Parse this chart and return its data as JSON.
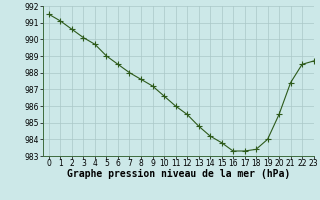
{
  "x": [
    0,
    1,
    2,
    3,
    4,
    5,
    6,
    7,
    8,
    9,
    10,
    11,
    12,
    13,
    14,
    15,
    16,
    17,
    18,
    19,
    20,
    21,
    22,
    23
  ],
  "y": [
    991.5,
    991.1,
    990.6,
    990.1,
    989.7,
    989.0,
    988.5,
    988.0,
    987.6,
    987.2,
    986.6,
    986.0,
    985.5,
    984.8,
    984.2,
    983.8,
    983.3,
    983.3,
    983.4,
    984.0,
    985.5,
    987.4,
    988.5,
    988.7
  ],
  "line_color": "#2d5a1b",
  "marker_color": "#2d5a1b",
  "bg_color": "#cce8e8",
  "grid_color": "#aac8c8",
  "xlabel": "Graphe pression niveau de la mer (hPa)",
  "ylim_min": 983,
  "ylim_max": 992,
  "xlim_min": -0.5,
  "xlim_max": 23,
  "yticks": [
    983,
    984,
    985,
    986,
    987,
    988,
    989,
    990,
    991,
    992
  ],
  "xticks": [
    0,
    1,
    2,
    3,
    4,
    5,
    6,
    7,
    8,
    9,
    10,
    11,
    12,
    13,
    14,
    15,
    16,
    17,
    18,
    19,
    20,
    21,
    22,
    23
  ],
  "tick_fontsize": 5.5,
  "xlabel_fontsize": 7,
  "line_width": 0.8,
  "marker_size": 4,
  "marker_ew": 0.8
}
